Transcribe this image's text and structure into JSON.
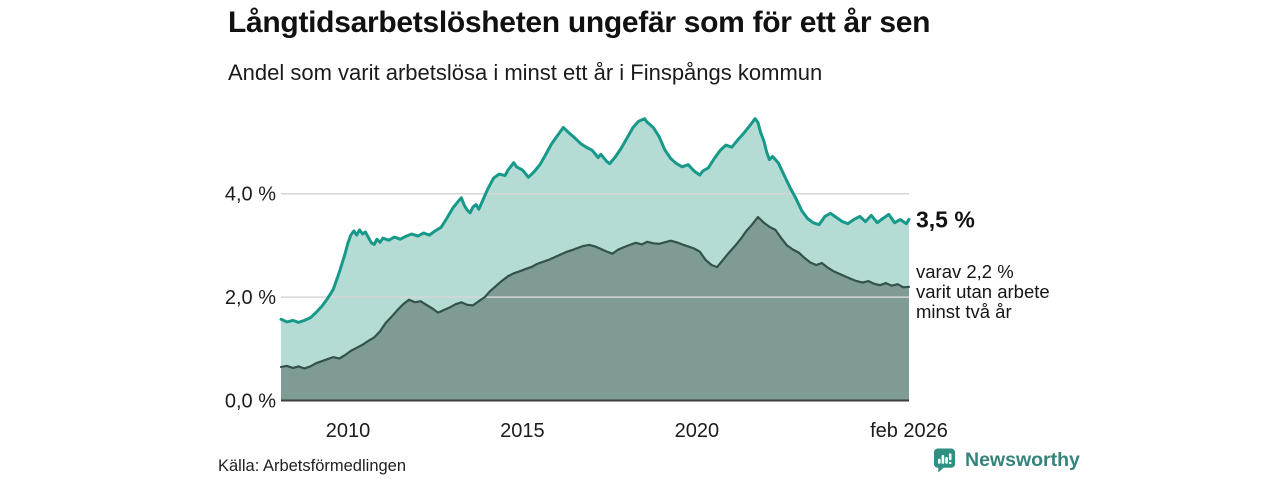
{
  "footer": {
    "source": "Källa: Arbetsförmedlingen",
    "brand": "Newsworthy"
  },
  "brand_colors": {
    "icon_teal": "#2e9082",
    "text_teal": "#35847b"
  },
  "chart_data": {
    "type": "area",
    "title": "Långtidsarbetslösheten ungefär som för ett år sen",
    "subtitle": "Andel som varit arbetslösa i minst ett år i Finspångs kommun",
    "unit": "%",
    "x_domain": [
      2008.08,
      2026.08
    ],
    "ylim": [
      0,
      5.6
    ],
    "grid": "horizontal",
    "grid_color": "#d6d6d6",
    "axis_color": "#3c3c3c",
    "y_ticks": [
      {
        "v": 0,
        "label": "0,0 %"
      },
      {
        "v": 2,
        "label": "2,0 %"
      },
      {
        "v": 4,
        "label": "4,0 %"
      }
    ],
    "x_ticks": [
      {
        "v": 2010,
        "label": "2010"
      },
      {
        "v": 2015,
        "label": "2015"
      },
      {
        "v": 2020,
        "label": "2020"
      },
      {
        "v": 2026.08,
        "label": "feb 2026"
      }
    ],
    "annotations": [
      {
        "style": "big",
        "text": "3,5 %",
        "value": 3.5
      },
      {
        "style": "small",
        "lines": [
          "varav 2,2 %",
          "varit utan arbete",
          "minst två år"
        ],
        "value": 2.2
      }
    ],
    "series": [
      {
        "id": "minst-ett-ar",
        "latest_label": "3,5 %",
        "line_color": "#17998a",
        "fill_color": "#b5dbd5",
        "line_width": 3,
        "points": [
          [
            2008.08,
            1.57
          ],
          [
            2008.25,
            1.52
          ],
          [
            2008.42,
            1.55
          ],
          [
            2008.58,
            1.51
          ],
          [
            2008.75,
            1.55
          ],
          [
            2008.92,
            1.6
          ],
          [
            2009.08,
            1.7
          ],
          [
            2009.25,
            1.82
          ],
          [
            2009.42,
            1.98
          ],
          [
            2009.58,
            2.15
          ],
          [
            2009.75,
            2.48
          ],
          [
            2009.92,
            2.85
          ],
          [
            2010.0,
            3.05
          ],
          [
            2010.08,
            3.2
          ],
          [
            2010.17,
            3.28
          ],
          [
            2010.25,
            3.2
          ],
          [
            2010.33,
            3.3
          ],
          [
            2010.42,
            3.22
          ],
          [
            2010.5,
            3.26
          ],
          [
            2010.58,
            3.16
          ],
          [
            2010.67,
            3.05
          ],
          [
            2010.75,
            3.02
          ],
          [
            2010.83,
            3.12
          ],
          [
            2010.92,
            3.06
          ],
          [
            2011.0,
            3.14
          ],
          [
            2011.17,
            3.1
          ],
          [
            2011.33,
            3.16
          ],
          [
            2011.5,
            3.12
          ],
          [
            2011.67,
            3.18
          ],
          [
            2011.83,
            3.22
          ],
          [
            2012.0,
            3.18
          ],
          [
            2012.17,
            3.24
          ],
          [
            2012.33,
            3.2
          ],
          [
            2012.5,
            3.28
          ],
          [
            2012.67,
            3.35
          ],
          [
            2012.83,
            3.52
          ],
          [
            2013.0,
            3.72
          ],
          [
            2013.17,
            3.86
          ],
          [
            2013.25,
            3.92
          ],
          [
            2013.33,
            3.78
          ],
          [
            2013.42,
            3.68
          ],
          [
            2013.5,
            3.63
          ],
          [
            2013.58,
            3.74
          ],
          [
            2013.67,
            3.79
          ],
          [
            2013.75,
            3.7
          ],
          [
            2013.83,
            3.82
          ],
          [
            2014.0,
            4.08
          ],
          [
            2014.17,
            4.3
          ],
          [
            2014.33,
            4.38
          ],
          [
            2014.5,
            4.35
          ],
          [
            2014.58,
            4.45
          ],
          [
            2014.75,
            4.6
          ],
          [
            2014.83,
            4.52
          ],
          [
            2015.0,
            4.46
          ],
          [
            2015.17,
            4.32
          ],
          [
            2015.33,
            4.42
          ],
          [
            2015.5,
            4.56
          ],
          [
            2015.67,
            4.76
          ],
          [
            2015.83,
            4.96
          ],
          [
            2016.0,
            5.12
          ],
          [
            2016.17,
            5.28
          ],
          [
            2016.33,
            5.18
          ],
          [
            2016.5,
            5.08
          ],
          [
            2016.67,
            4.97
          ],
          [
            2016.83,
            4.9
          ],
          [
            2017.0,
            4.84
          ],
          [
            2017.17,
            4.7
          ],
          [
            2017.25,
            4.76
          ],
          [
            2017.42,
            4.62
          ],
          [
            2017.5,
            4.58
          ],
          [
            2017.67,
            4.72
          ],
          [
            2017.83,
            4.88
          ],
          [
            2018.0,
            5.08
          ],
          [
            2018.17,
            5.28
          ],
          [
            2018.33,
            5.4
          ],
          [
            2018.5,
            5.45
          ],
          [
            2018.58,
            5.38
          ],
          [
            2018.75,
            5.28
          ],
          [
            2018.92,
            5.1
          ],
          [
            2019.08,
            4.85
          ],
          [
            2019.25,
            4.68
          ],
          [
            2019.42,
            4.58
          ],
          [
            2019.58,
            4.52
          ],
          [
            2019.75,
            4.56
          ],
          [
            2019.92,
            4.44
          ],
          [
            2020.08,
            4.36
          ],
          [
            2020.17,
            4.44
          ],
          [
            2020.33,
            4.5
          ],
          [
            2020.5,
            4.68
          ],
          [
            2020.67,
            4.84
          ],
          [
            2020.83,
            4.94
          ],
          [
            2021.0,
            4.9
          ],
          [
            2021.17,
            5.04
          ],
          [
            2021.33,
            5.16
          ],
          [
            2021.5,
            5.3
          ],
          [
            2021.67,
            5.45
          ],
          [
            2021.75,
            5.38
          ],
          [
            2021.83,
            5.18
          ],
          [
            2021.92,
            5.02
          ],
          [
            2022.0,
            4.8
          ],
          [
            2022.08,
            4.66
          ],
          [
            2022.17,
            4.72
          ],
          [
            2022.33,
            4.6
          ],
          [
            2022.5,
            4.36
          ],
          [
            2022.67,
            4.12
          ],
          [
            2022.83,
            3.92
          ],
          [
            2023.0,
            3.68
          ],
          [
            2023.17,
            3.52
          ],
          [
            2023.33,
            3.44
          ],
          [
            2023.5,
            3.4
          ],
          [
            2023.67,
            3.56
          ],
          [
            2023.83,
            3.62
          ],
          [
            2024.0,
            3.54
          ],
          [
            2024.17,
            3.46
          ],
          [
            2024.33,
            3.42
          ],
          [
            2024.5,
            3.5
          ],
          [
            2024.67,
            3.56
          ],
          [
            2024.83,
            3.46
          ],
          [
            2025.0,
            3.58
          ],
          [
            2025.17,
            3.44
          ],
          [
            2025.33,
            3.52
          ],
          [
            2025.5,
            3.6
          ],
          [
            2025.67,
            3.44
          ],
          [
            2025.83,
            3.5
          ],
          [
            2026.0,
            3.42
          ],
          [
            2026.08,
            3.5
          ]
        ]
      },
      {
        "id": "minst-tva-ar",
        "latest_label": "2,2 %",
        "line_color": "#33524c",
        "fill_color": "#7e9c95",
        "line_width": 2.2,
        "points": [
          [
            2008.08,
            0.65
          ],
          [
            2008.25,
            0.67
          ],
          [
            2008.42,
            0.63
          ],
          [
            2008.58,
            0.66
          ],
          [
            2008.75,
            0.62
          ],
          [
            2008.92,
            0.66
          ],
          [
            2009.08,
            0.72
          ],
          [
            2009.25,
            0.76
          ],
          [
            2009.42,
            0.8
          ],
          [
            2009.58,
            0.84
          ],
          [
            2009.75,
            0.81
          ],
          [
            2009.92,
            0.88
          ],
          [
            2010.08,
            0.96
          ],
          [
            2010.25,
            1.02
          ],
          [
            2010.42,
            1.08
          ],
          [
            2010.58,
            1.15
          ],
          [
            2010.75,
            1.22
          ],
          [
            2010.92,
            1.34
          ],
          [
            2011.08,
            1.5
          ],
          [
            2011.25,
            1.62
          ],
          [
            2011.42,
            1.75
          ],
          [
            2011.58,
            1.86
          ],
          [
            2011.75,
            1.95
          ],
          [
            2011.92,
            1.9
          ],
          [
            2012.08,
            1.92
          ],
          [
            2012.25,
            1.85
          ],
          [
            2012.42,
            1.78
          ],
          [
            2012.58,
            1.7
          ],
          [
            2012.75,
            1.75
          ],
          [
            2012.92,
            1.8
          ],
          [
            2013.08,
            1.86
          ],
          [
            2013.25,
            1.9
          ],
          [
            2013.42,
            1.85
          ],
          [
            2013.58,
            1.84
          ],
          [
            2013.75,
            1.92
          ],
          [
            2013.92,
            2.0
          ],
          [
            2014.08,
            2.12
          ],
          [
            2014.25,
            2.22
          ],
          [
            2014.42,
            2.32
          ],
          [
            2014.58,
            2.4
          ],
          [
            2014.75,
            2.46
          ],
          [
            2014.92,
            2.5
          ],
          [
            2015.08,
            2.54
          ],
          [
            2015.25,
            2.58
          ],
          [
            2015.42,
            2.64
          ],
          [
            2015.58,
            2.68
          ],
          [
            2015.75,
            2.72
          ],
          [
            2015.92,
            2.77
          ],
          [
            2016.08,
            2.82
          ],
          [
            2016.25,
            2.87
          ],
          [
            2016.42,
            2.91
          ],
          [
            2016.58,
            2.95
          ],
          [
            2016.75,
            2.99
          ],
          [
            2016.92,
            3.01
          ],
          [
            2017.08,
            2.98
          ],
          [
            2017.25,
            2.93
          ],
          [
            2017.42,
            2.88
          ],
          [
            2017.58,
            2.84
          ],
          [
            2017.75,
            2.92
          ],
          [
            2017.92,
            2.97
          ],
          [
            2018.08,
            3.01
          ],
          [
            2018.25,
            3.05
          ],
          [
            2018.42,
            3.02
          ],
          [
            2018.58,
            3.07
          ],
          [
            2018.75,
            3.04
          ],
          [
            2018.92,
            3.03
          ],
          [
            2019.08,
            3.06
          ],
          [
            2019.25,
            3.09
          ],
          [
            2019.42,
            3.06
          ],
          [
            2019.58,
            3.02
          ],
          [
            2019.75,
            2.98
          ],
          [
            2019.92,
            2.94
          ],
          [
            2020.08,
            2.88
          ],
          [
            2020.25,
            2.72
          ],
          [
            2020.42,
            2.62
          ],
          [
            2020.58,
            2.58
          ],
          [
            2020.75,
            2.72
          ],
          [
            2020.92,
            2.86
          ],
          [
            2021.08,
            2.98
          ],
          [
            2021.25,
            3.12
          ],
          [
            2021.42,
            3.28
          ],
          [
            2021.58,
            3.4
          ],
          [
            2021.75,
            3.55
          ],
          [
            2021.92,
            3.44
          ],
          [
            2022.08,
            3.36
          ],
          [
            2022.25,
            3.3
          ],
          [
            2022.42,
            3.14
          ],
          [
            2022.58,
            3.0
          ],
          [
            2022.75,
            2.92
          ],
          [
            2022.92,
            2.86
          ],
          [
            2023.08,
            2.76
          ],
          [
            2023.25,
            2.67
          ],
          [
            2023.42,
            2.62
          ],
          [
            2023.58,
            2.66
          ],
          [
            2023.75,
            2.57
          ],
          [
            2023.92,
            2.5
          ],
          [
            2024.08,
            2.45
          ],
          [
            2024.25,
            2.4
          ],
          [
            2024.42,
            2.35
          ],
          [
            2024.58,
            2.31
          ],
          [
            2024.75,
            2.28
          ],
          [
            2024.92,
            2.31
          ],
          [
            2025.08,
            2.26
          ],
          [
            2025.25,
            2.23
          ],
          [
            2025.42,
            2.27
          ],
          [
            2025.58,
            2.22
          ],
          [
            2025.75,
            2.25
          ],
          [
            2025.92,
            2.19
          ],
          [
            2026.08,
            2.2
          ]
        ]
      }
    ]
  }
}
